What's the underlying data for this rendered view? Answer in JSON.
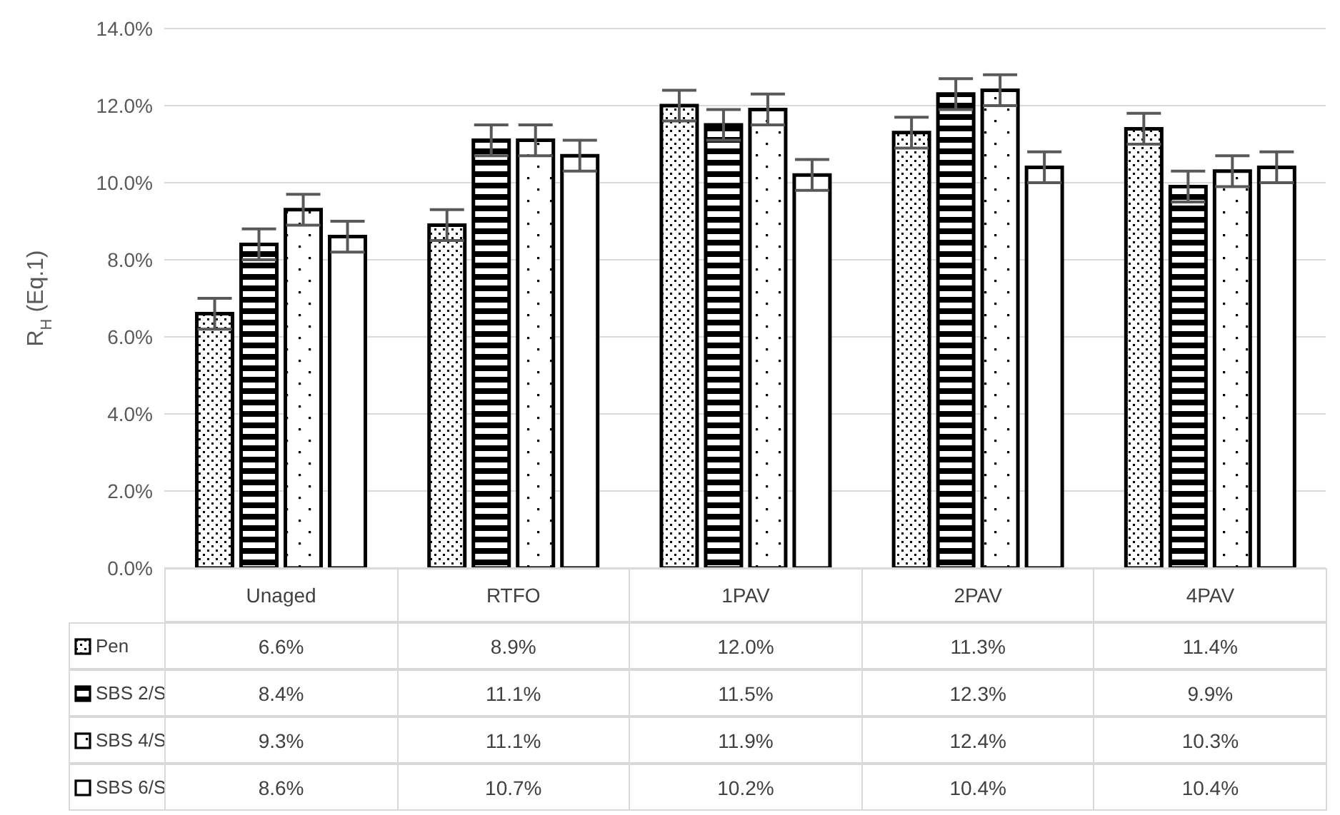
{
  "chart_data": {
    "type": "bar",
    "ylabel": "R$_{H}$ (Eq.1)",
    "categories": [
      "Unaged",
      "RTFO",
      "1PAV",
      "2PAV",
      "4PAV"
    ],
    "series": [
      {
        "name": "Pen",
        "color": "#000000",
        "values": [
          6.6,
          8.9,
          12.0,
          11.3,
          11.4
        ],
        "errors": [
          0.4,
          0.4,
          0.4,
          0.4,
          0.4
        ],
        "value_labels": [
          "6.6%",
          "8.9%",
          "12.0%",
          "11.3%",
          "11.4%"
        ]
      },
      {
        "name": "SBS 2/S",
        "color": "#000000",
        "values": [
          8.4,
          11.1,
          11.5,
          12.3,
          9.9
        ],
        "errors": [
          0.4,
          0.4,
          0.4,
          0.4,
          0.4
        ],
        "value_labels": [
          "8.4%",
          "11.1%",
          "11.5%",
          "12.3%",
          "9.9%"
        ]
      },
      {
        "name": "SBS 4/S",
        "color": "#000000",
        "values": [
          9.3,
          11.1,
          11.9,
          12.4,
          10.3
        ],
        "errors": [
          0.4,
          0.4,
          0.4,
          0.4,
          0.4
        ],
        "value_labels": [
          "9.3%",
          "11.1%",
          "11.9%",
          "12.4%",
          "10.3%"
        ]
      },
      {
        "name": "SBS 6/S",
        "color": "#000000",
        "values": [
          8.6,
          10.7,
          10.2,
          10.4,
          10.4
        ],
        "errors": [
          0.4,
          0.4,
          0.4,
          0.4,
          0.4
        ],
        "value_labels": [
          "8.6%",
          "10.7%",
          "10.2%",
          "10.4%",
          "10.4%"
        ]
      }
    ],
    "ylim": [
      0,
      14
    ],
    "yticks": [
      {
        "value": 0,
        "label": "0.0%"
      },
      {
        "value": 2,
        "label": "2.0%"
      },
      {
        "value": 4,
        "label": "4.0%"
      },
      {
        "value": 6,
        "label": "6.0%"
      },
      {
        "value": 8,
        "label": "8.0%"
      },
      {
        "value": 10,
        "label": "10.0%"
      },
      {
        "value": 12,
        "label": "12.0%"
      },
      {
        "value": 14,
        "label": "14.0%"
      }
    ],
    "grid": "y",
    "legend": "bottom"
  }
}
